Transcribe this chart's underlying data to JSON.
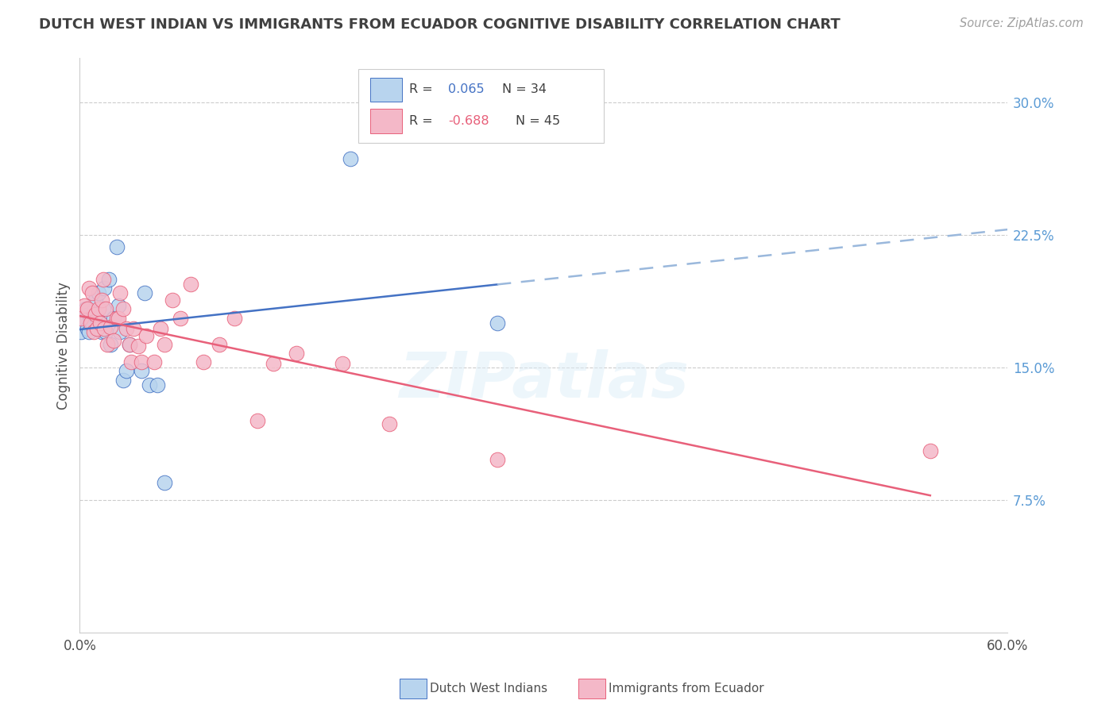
{
  "title": "DUTCH WEST INDIAN VS IMMIGRANTS FROM ECUADOR COGNITIVE DISABILITY CORRELATION CHART",
  "source": "Source: ZipAtlas.com",
  "ylabel": "Cognitive Disability",
  "right_yticks": [
    "30.0%",
    "22.5%",
    "15.0%",
    "7.5%"
  ],
  "right_ytick_vals": [
    0.3,
    0.225,
    0.15,
    0.075
  ],
  "legend_blue_label": "Dutch West Indians",
  "legend_pink_label": "Immigrants from Ecuador",
  "blue_color": "#b8d4ee",
  "blue_line_color": "#4472c4",
  "blue_dash_color": "#9ab8dc",
  "pink_color": "#f4b8c8",
  "pink_line_color": "#e8607a",
  "title_color": "#404040",
  "source_color": "#a0a0a0",
  "right_axis_color": "#5b9bd5",
  "legend_r_blue_color": "#4472c4",
  "legend_r_pink_color": "#e8607a",
  "legend_n_color": "#404040",
  "grid_color": "#cccccc",
  "background_color": "#ffffff",
  "blue_x": [
    0.001,
    0.002,
    0.003,
    0.004,
    0.005,
    0.006,
    0.006,
    0.007,
    0.008,
    0.009,
    0.01,
    0.011,
    0.012,
    0.013,
    0.014,
    0.015,
    0.016,
    0.017,
    0.019,
    0.02,
    0.022,
    0.024,
    0.025,
    0.026,
    0.028,
    0.03,
    0.032,
    0.04,
    0.042,
    0.045,
    0.05,
    0.055,
    0.175,
    0.27
  ],
  "blue_y": [
    0.17,
    0.178,
    0.175,
    0.183,
    0.172,
    0.18,
    0.17,
    0.178,
    0.175,
    0.182,
    0.188,
    0.178,
    0.192,
    0.175,
    0.17,
    0.183,
    0.195,
    0.17,
    0.2,
    0.163,
    0.178,
    0.218,
    0.185,
    0.17,
    0.143,
    0.148,
    0.163,
    0.148,
    0.192,
    0.14,
    0.14,
    0.085,
    0.268,
    0.175
  ],
  "pink_x": [
    0.001,
    0.003,
    0.005,
    0.006,
    0.007,
    0.008,
    0.009,
    0.01,
    0.011,
    0.012,
    0.013,
    0.014,
    0.015,
    0.016,
    0.017,
    0.018,
    0.02,
    0.022,
    0.024,
    0.025,
    0.026,
    0.028,
    0.03,
    0.032,
    0.033,
    0.035,
    0.038,
    0.04,
    0.043,
    0.048,
    0.052,
    0.055,
    0.06,
    0.065,
    0.072,
    0.08,
    0.09,
    0.1,
    0.115,
    0.125,
    0.14,
    0.17,
    0.2,
    0.27,
    0.55
  ],
  "pink_y": [
    0.178,
    0.185,
    0.183,
    0.195,
    0.175,
    0.192,
    0.17,
    0.18,
    0.172,
    0.183,
    0.175,
    0.188,
    0.2,
    0.172,
    0.183,
    0.163,
    0.173,
    0.165,
    0.178,
    0.178,
    0.192,
    0.183,
    0.172,
    0.163,
    0.153,
    0.172,
    0.162,
    0.153,
    0.168,
    0.153,
    0.172,
    0.163,
    0.188,
    0.178,
    0.197,
    0.153,
    0.163,
    0.178,
    0.12,
    0.152,
    0.158,
    0.152,
    0.118,
    0.098,
    0.103
  ],
  "xlim": [
    0.0,
    0.6
  ],
  "ylim": [
    0.0,
    0.325
  ],
  "blue_R": 0.065,
  "blue_N": 34,
  "pink_R": -0.688,
  "pink_N": 45
}
